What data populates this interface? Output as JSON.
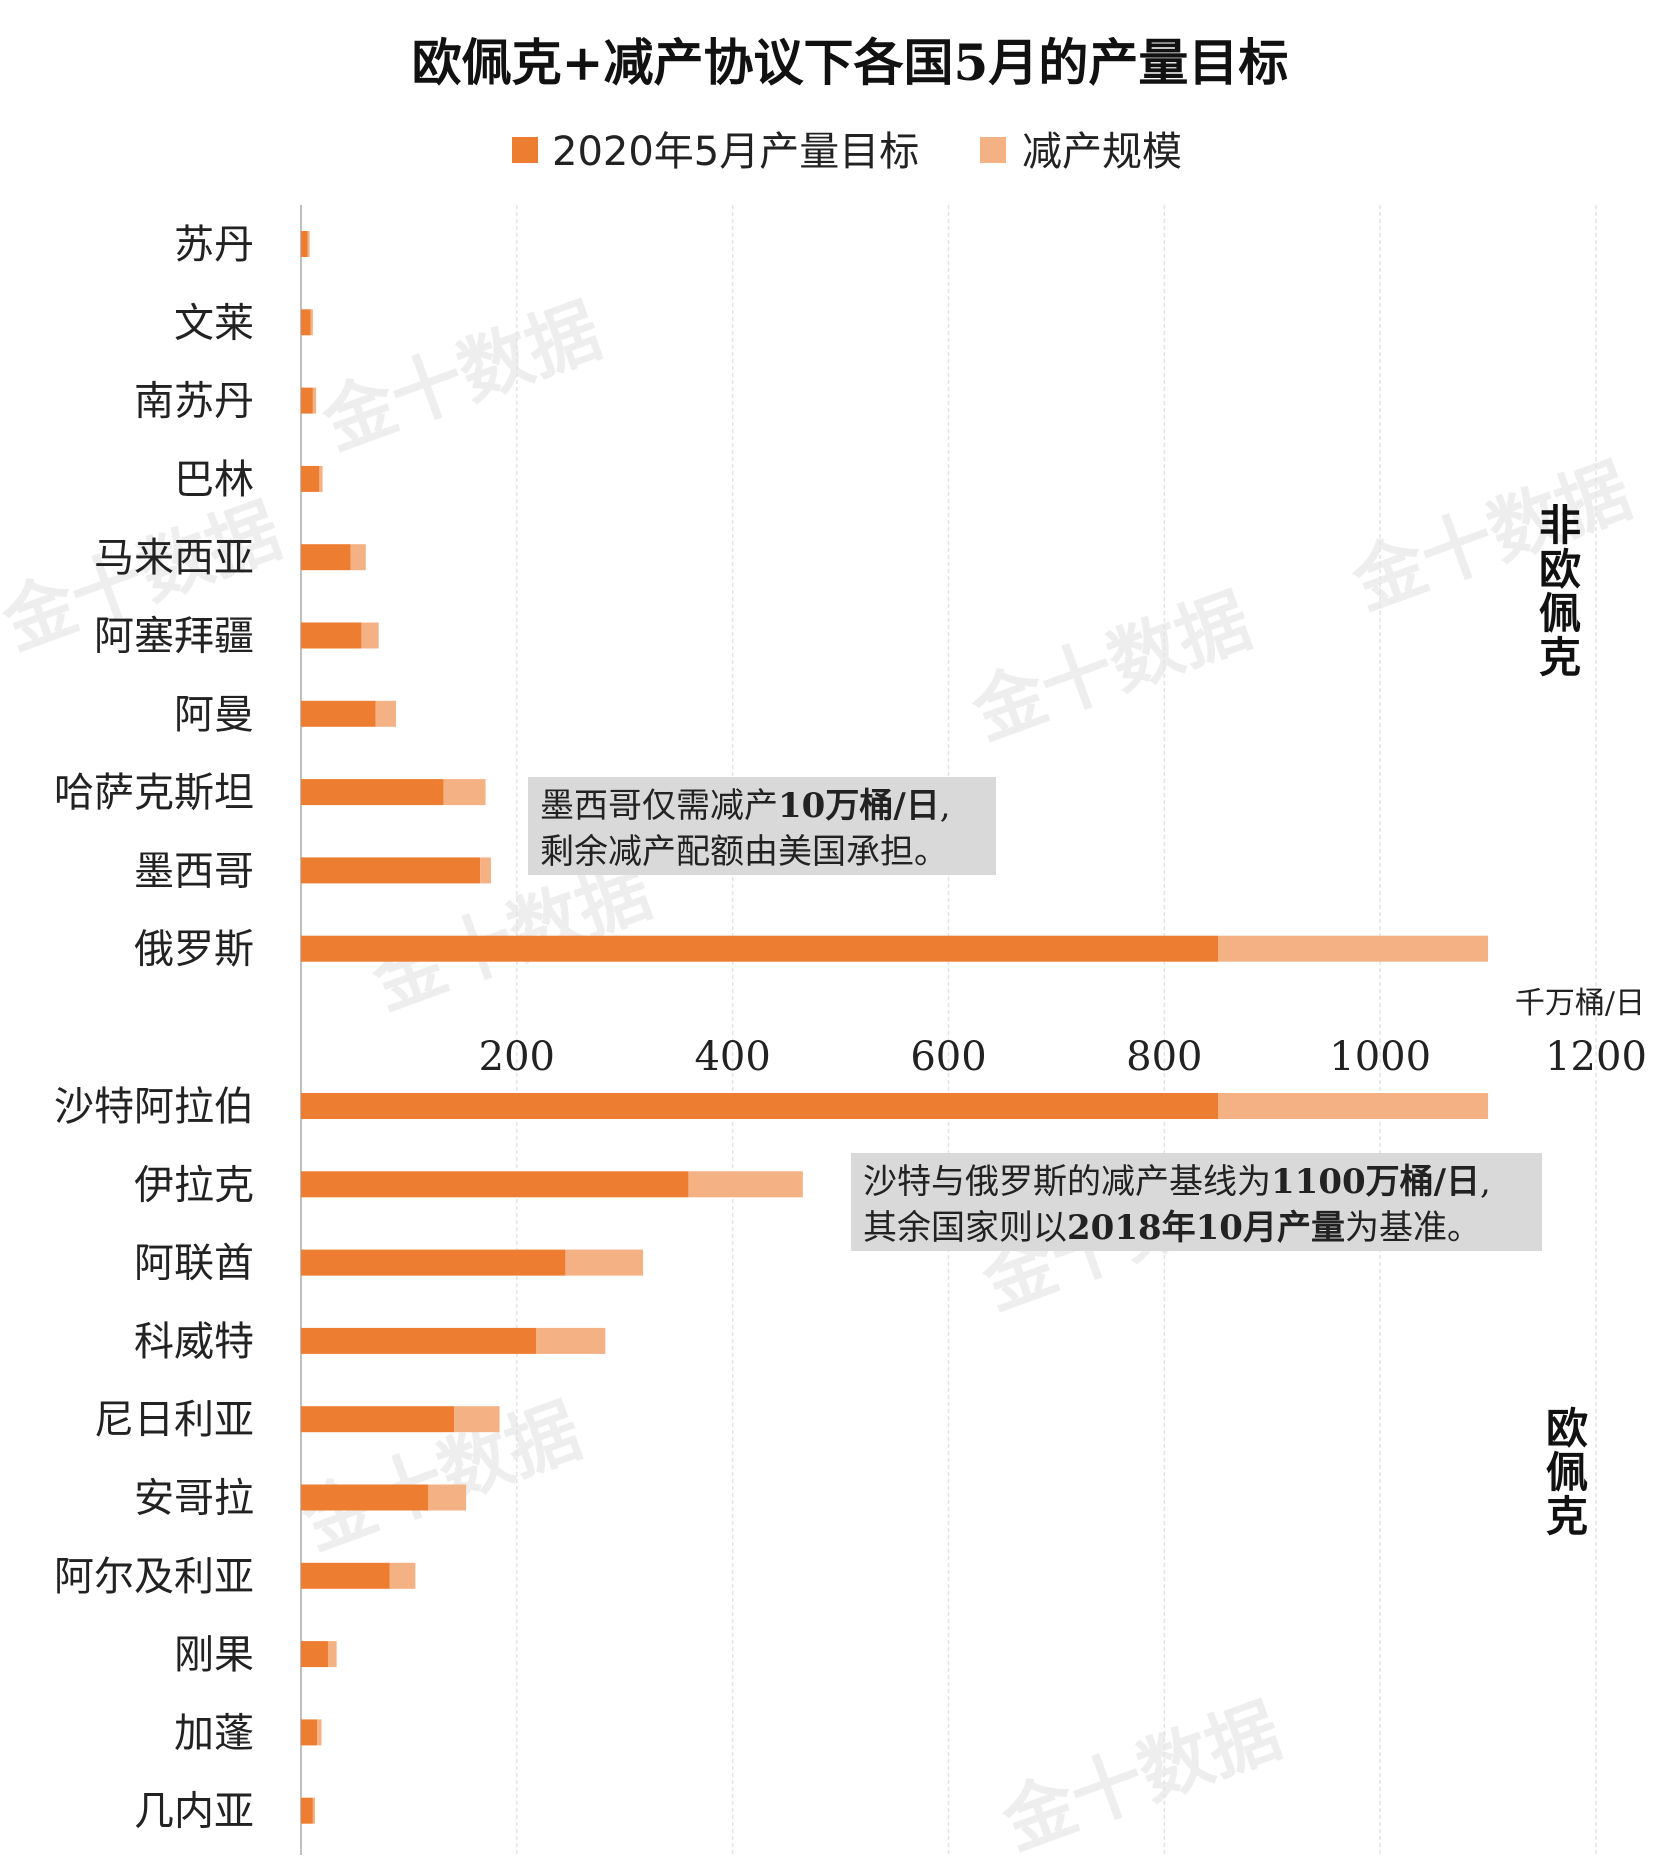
{
  "chart_data": {
    "type": "bar",
    "orientation": "horizontal",
    "stacked": true,
    "title": "欧佩克+减产协议下各国5月的产量目标",
    "unit": "千万桶/日",
    "xlim": [
      0,
      1200
    ],
    "xticks": [
      200,
      400,
      600,
      800,
      1000,
      1200
    ],
    "grid": true,
    "legend_position": "top",
    "series": [
      {
        "name": "2020年5月产量目标",
        "color": "#ed7d31"
      },
      {
        "name": "减产规模",
        "color": "#f4b183"
      }
    ],
    "groups": [
      {
        "label": "非欧佩克",
        "categories": [
          "苏丹",
          "文莱",
          "南苏丹",
          "巴林",
          "马来西亚",
          "阿塞拜疆",
          "阿曼",
          "哈萨克斯坦",
          "墨西哥",
          "俄罗斯"
        ],
        "target": [
          6,
          9,
          11,
          17,
          46,
          56,
          69,
          132,
          166,
          850
        ],
        "cut": [
          2,
          2,
          3,
          3,
          14,
          16,
          19,
          39,
          10,
          250
        ]
      },
      {
        "label": "欧佩克",
        "categories": [
          "沙特阿拉伯",
          "伊拉克",
          "阿联酋",
          "科威特",
          "尼日利亚",
          "安哥拉",
          "阿尔及利亚",
          "刚果",
          "加蓬",
          "几内亚"
        ],
        "target": [
          850,
          359,
          245,
          218,
          142,
          118,
          82,
          25,
          15,
          11
        ],
        "cut": [
          250,
          106,
          72,
          64,
          42,
          35,
          24,
          8,
          4,
          2
        ]
      }
    ],
    "annotations": [
      {
        "line1_parts": [
          "墨西哥仅需减产",
          "10万桶/日",
          ","
        ],
        "line2": "剩余减产配额由美国承担。"
      },
      {
        "line1_parts": [
          "沙特与俄罗斯的减产基线为",
          "1100万桶/日",
          ","
        ],
        "line2_parts": [
          "其余国家则以",
          "2018年10月产量",
          "为基准。"
        ]
      }
    ],
    "watermark": "金十数据"
  }
}
